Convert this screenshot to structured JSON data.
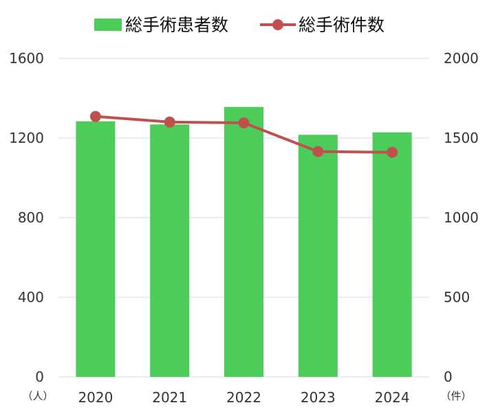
{
  "chart_data": {
    "type": "bar",
    "categories": [
      "2020",
      "2021",
      "2022",
      "2023",
      "2024"
    ],
    "series": [
      {
        "name": "総手術患者数",
        "type": "bar",
        "axis": "left",
        "color": "#4ccc59",
        "values": [
          1284,
          1268,
          1356,
          1216,
          1228
        ]
      },
      {
        "name": "総手術件数",
        "type": "line",
        "axis": "right",
        "color": "#c0504d",
        "values": [
          1635,
          1600,
          1595,
          1415,
          1410
        ]
      }
    ],
    "left_axis": {
      "ylim": [
        0,
        1600
      ],
      "ticks": [
        "0",
        "400",
        "800",
        "1200",
        "1600"
      ],
      "unit": "（人）"
    },
    "right_axis": {
      "ylim": [
        0,
        2000
      ],
      "ticks": [
        "0",
        "500",
        "1000",
        "1500",
        "2000"
      ],
      "unit": "（件）"
    },
    "grid": true,
    "legend_position": "top"
  }
}
